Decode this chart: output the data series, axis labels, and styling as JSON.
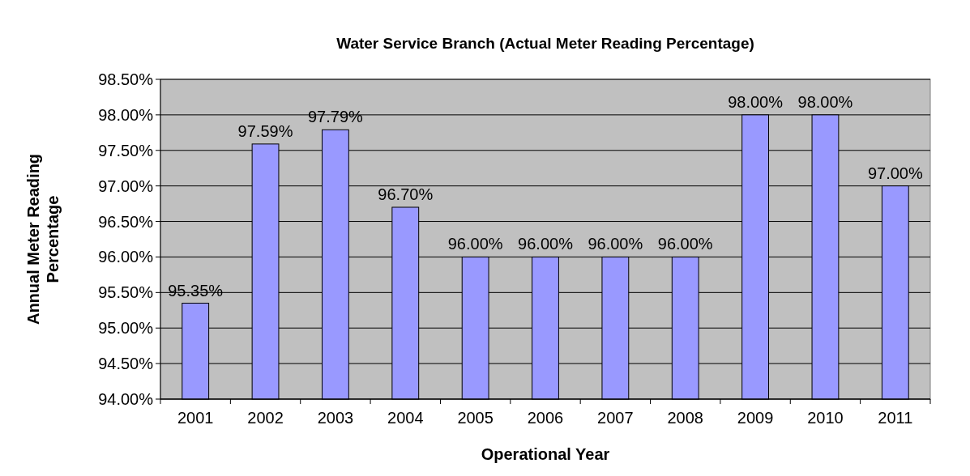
{
  "chart_data": {
    "type": "bar",
    "title": "Water Service Branch (Actual Meter Reading Percentage)",
    "xlabel": "Operational Year",
    "ylabel": "Annual Meter Reading Percentage",
    "categories": [
      "2001",
      "2002",
      "2003",
      "2004",
      "2005",
      "2006",
      "2007",
      "2008",
      "2009",
      "2010",
      "2011"
    ],
    "values": [
      95.35,
      97.59,
      97.79,
      96.7,
      96,
      96,
      96,
      96,
      98,
      98,
      97
    ],
    "value_labels": [
      "95.35%",
      "97.59%",
      "97.79%",
      "96.70%",
      "96.00%",
      "96.00%",
      "96.00%",
      "96.00%",
      "98.00%",
      "98.00%",
      "97.00%"
    ],
    "color": "#9999ff",
    "ylim": [
      94,
      98.5
    ],
    "yticks": [
      {
        "value": 94,
        "label": "94.00%"
      },
      {
        "value": 94.5,
        "label": "94.50%"
      },
      {
        "value": 95,
        "label": "95.00%"
      },
      {
        "value": 95.5,
        "label": "95.50%"
      },
      {
        "value": 96,
        "label": "96.00%"
      },
      {
        "value": 96.5,
        "label": "96.50%"
      },
      {
        "value": 97,
        "label": "97.00%"
      },
      {
        "value": 97.5,
        "label": "97.50%"
      },
      {
        "value": 98,
        "label": "98.00%"
      },
      {
        "value": 98.5,
        "label": "98.50%"
      }
    ],
    "grid": "y"
  }
}
